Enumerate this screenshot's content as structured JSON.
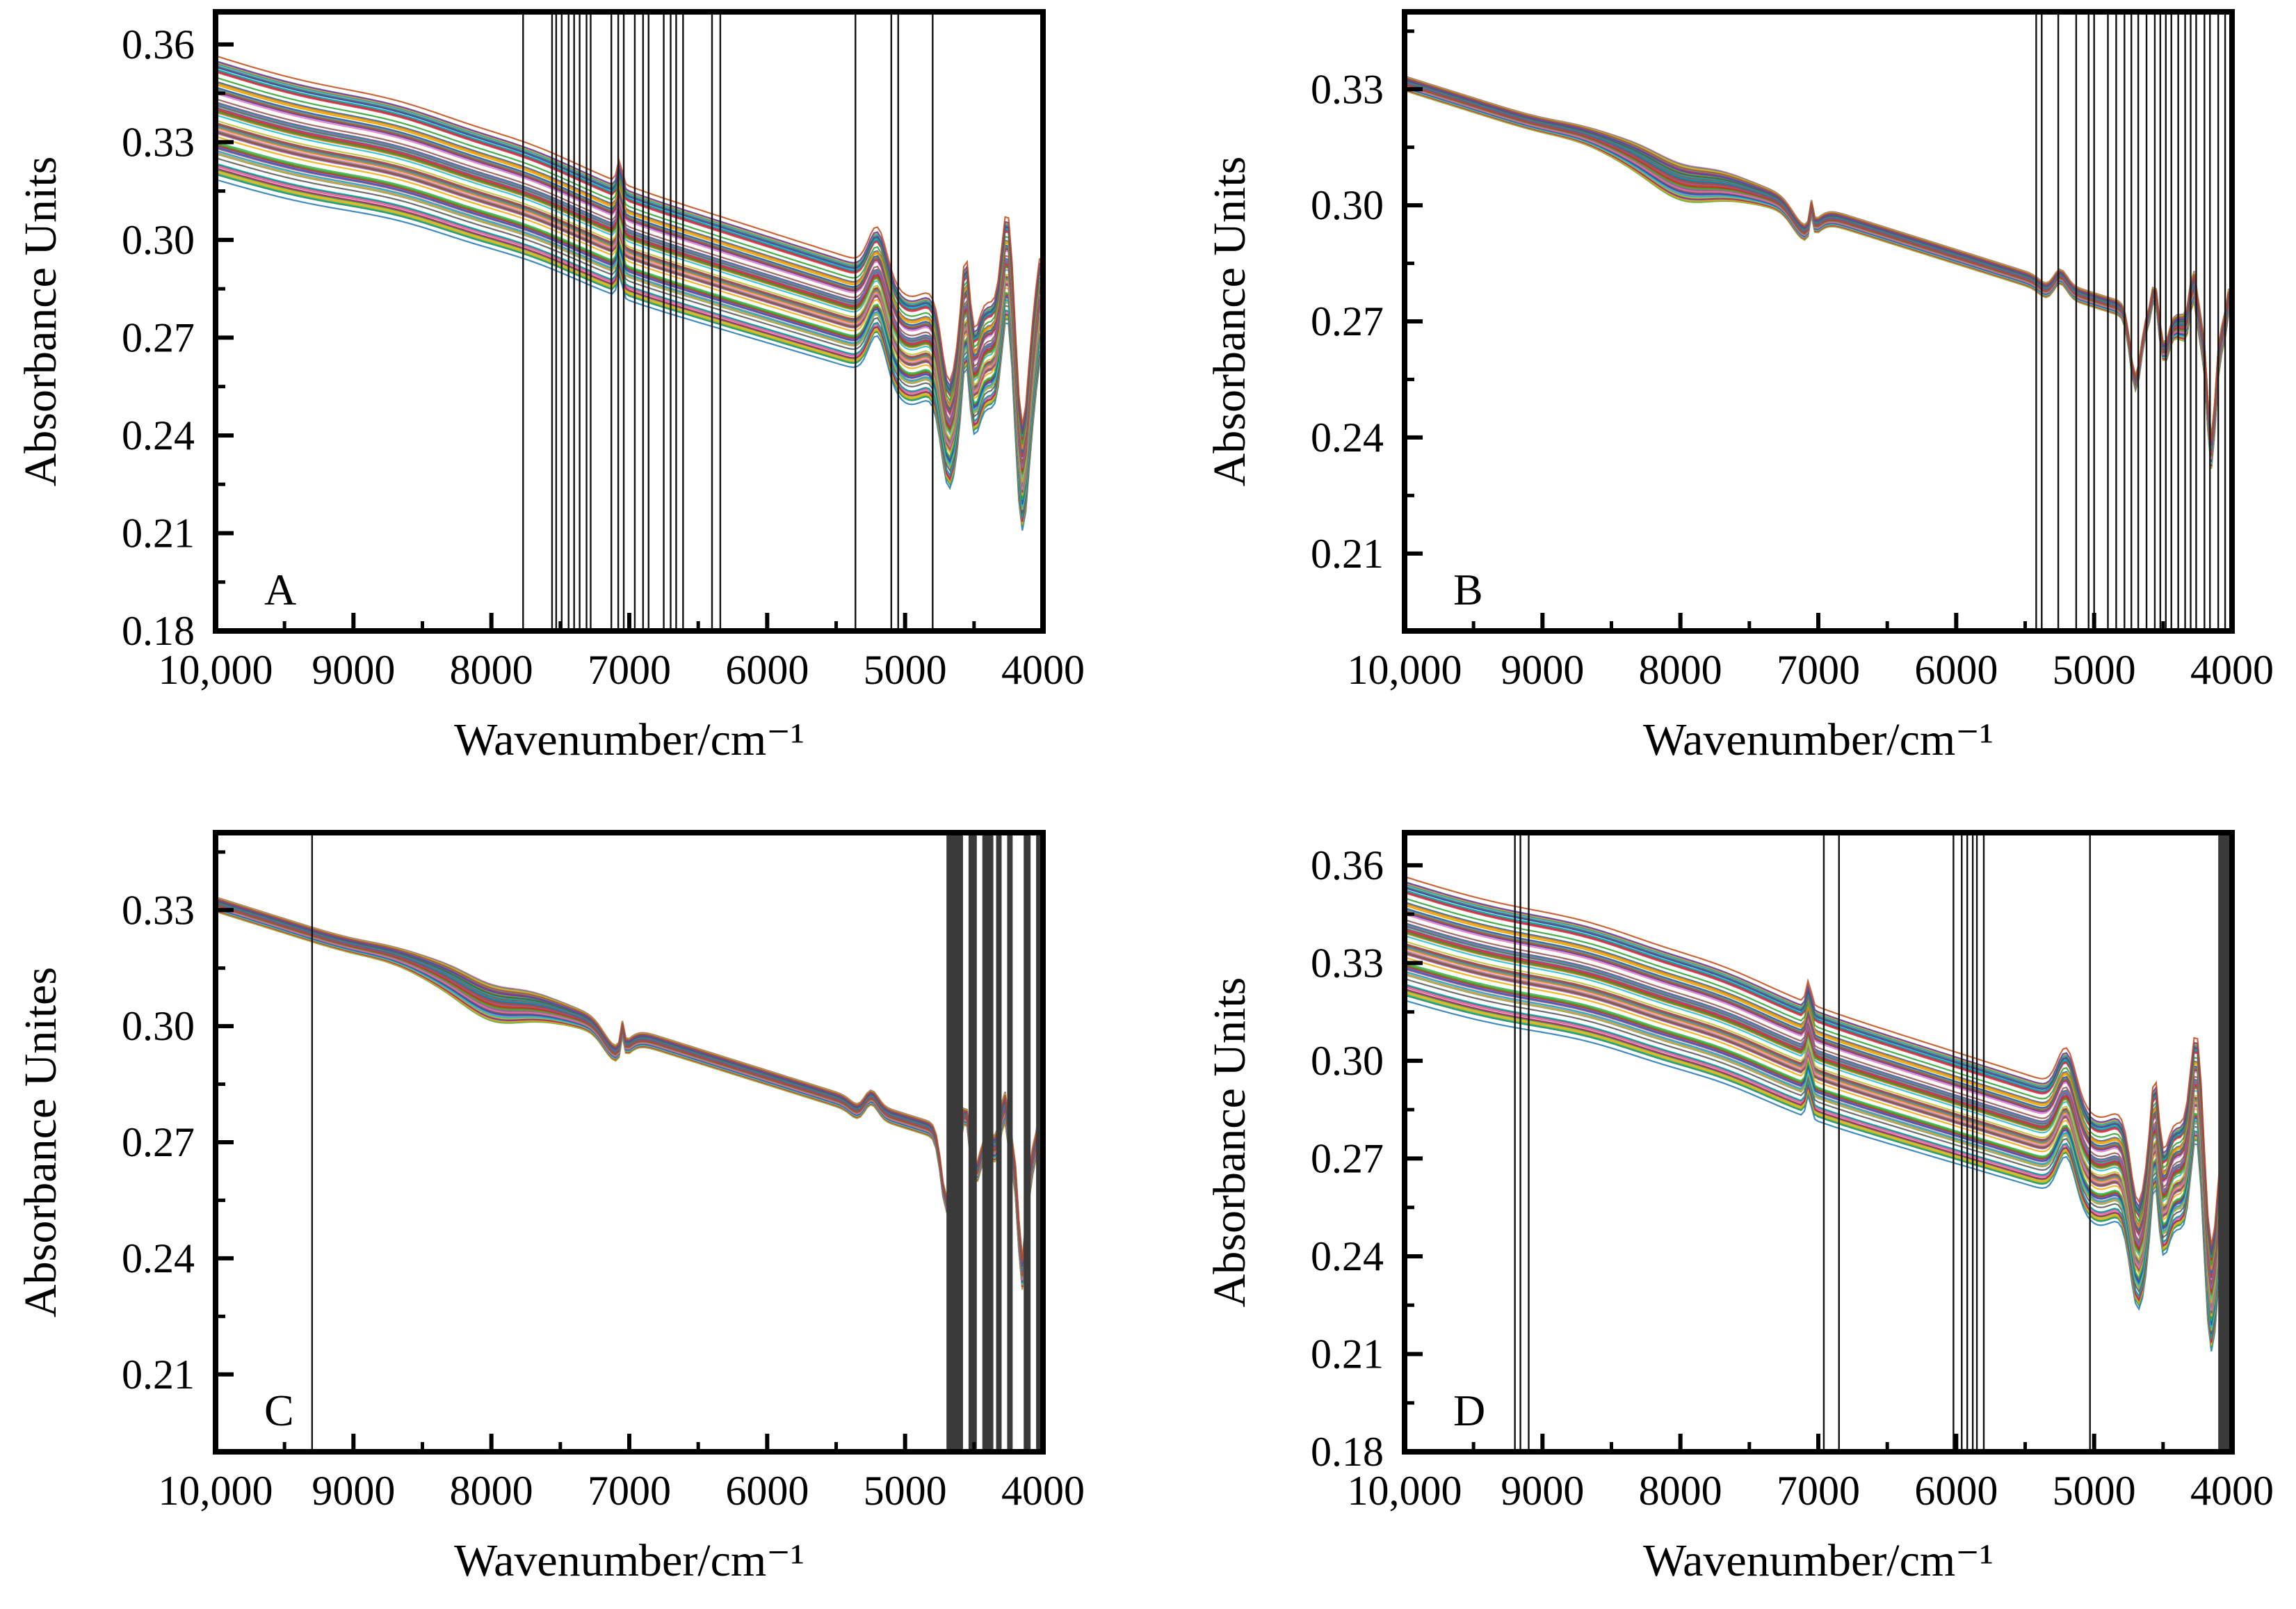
{
  "chart_data": [
    {
      "panel": "A",
      "type": "line",
      "xlabel": "Wavenumber/cm⁻¹",
      "ylabel": "Absorbance Units",
      "xlim": [
        10000,
        4000
      ],
      "ylim": [
        0.18,
        0.37
      ],
      "xticks": [
        10000,
        9000,
        8000,
        7000,
        6000,
        5000,
        4000
      ],
      "xtick_labels": [
        "10,000",
        "9000",
        "8000",
        "7000",
        "6000",
        "5000",
        "4000"
      ],
      "yticks": [
        0.18,
        0.21,
        0.24,
        0.27,
        0.3,
        0.33,
        0.36
      ],
      "ytick_labels": [
        "0.18",
        "0.21",
        "0.24",
        "0.27",
        "0.30",
        "0.33",
        "0.36"
      ],
      "spectra": "raw",
      "series_count": 90,
      "selected_wavenumbers": [
        7770,
        7560,
        7530,
        7490,
        7440,
        7400,
        7360,
        7310,
        7280,
        7130,
        7080,
        7040,
        6960,
        6900,
        6860,
        6750,
        6700,
        6660,
        6610,
        6400,
        6340,
        5360,
        5100,
        5050,
        4800
      ]
    },
    {
      "panel": "B",
      "type": "line",
      "xlabel": "Wavenumber/cm⁻¹",
      "ylabel": "Absorbance Units",
      "xlim": [
        10000,
        4000
      ],
      "ylim": [
        0.19,
        0.35
      ],
      "xticks": [
        10000,
        9000,
        8000,
        7000,
        6000,
        5000,
        4000
      ],
      "xtick_labels": [
        "10,000",
        "9000",
        "8000",
        "7000",
        "6000",
        "5000",
        "4000"
      ],
      "yticks": [
        0.21,
        0.24,
        0.27,
        0.3,
        0.33
      ],
      "ytick_labels": [
        "0.21",
        "0.24",
        "0.27",
        "0.30",
        "0.33"
      ],
      "spectra": "preprocessed",
      "series_count": 90,
      "selected_wavenumbers": [
        5420,
        5380,
        5260,
        5130,
        5040,
        5000,
        4900,
        4840,
        4780,
        4730,
        4680,
        4620,
        4560,
        4520,
        4480,
        4440,
        4390,
        4340,
        4300,
        4260,
        4200,
        4160,
        4100,
        4050
      ]
    },
    {
      "panel": "C",
      "type": "line",
      "xlabel": "Wavenumber/cm⁻¹",
      "ylabel": "Absorbance Unites",
      "xlim": [
        10000,
        4000
      ],
      "ylim": [
        0.19,
        0.35
      ],
      "xticks": [
        10000,
        9000,
        8000,
        7000,
        6000,
        5000,
        4000
      ],
      "xtick_labels": [
        "10,000",
        "9000",
        "8000",
        "7000",
        "6000",
        "5000",
        "4000"
      ],
      "yticks": [
        0.21,
        0.24,
        0.27,
        0.3,
        0.33
      ],
      "ytick_labels": [
        "0.21",
        "0.24",
        "0.27",
        "0.30",
        "0.33"
      ],
      "spectra": "preprocessed",
      "series_count": 90,
      "selected_wavenumbers": [
        9300
      ],
      "selected_bands": [
        [
          4700,
          4580
        ],
        [
          4540,
          4480
        ],
        [
          4440,
          4360
        ],
        [
          4340,
          4300
        ],
        [
          4260,
          4220
        ],
        [
          4140,
          4090
        ],
        [
          4050,
          4020
        ]
      ]
    },
    {
      "panel": "D",
      "type": "line",
      "xlabel": "Wavenumber/cm⁻¹",
      "ylabel": "Absorbance Units",
      "xlim": [
        10000,
        4000
      ],
      "ylim": [
        0.18,
        0.37
      ],
      "xticks": [
        10000,
        9000,
        8000,
        7000,
        6000,
        5000,
        4000
      ],
      "xtick_labels": [
        "10,000",
        "9000",
        "8000",
        "7000",
        "6000",
        "5000",
        "4000"
      ],
      "yticks": [
        0.18,
        0.21,
        0.24,
        0.27,
        0.3,
        0.33,
        0.36
      ],
      "ytick_labels": [
        "0.18",
        "0.21",
        "0.24",
        "0.27",
        "0.30",
        "0.33",
        "0.36"
      ],
      "spectra": "raw",
      "series_count": 90,
      "selected_wavenumbers": [
        9200,
        9160,
        9100,
        6960,
        6850,
        6020,
        5960,
        5920,
        5880,
        5850,
        5800,
        5030
      ],
      "selected_bands": [
        [
          4100,
          4000
        ]
      ]
    }
  ]
}
